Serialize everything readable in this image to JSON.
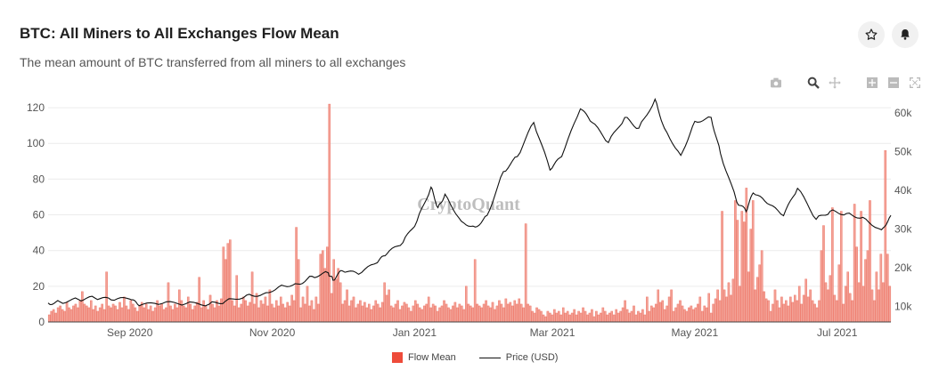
{
  "header": {
    "title": "BTC: All Miners to All Exchanges Flow Mean",
    "subtitle": "The mean amount of BTC transferred from all miners to all exchanges",
    "star_icon": "star-icon",
    "bell_icon": "bell-icon"
  },
  "modebar": {
    "icons": [
      "camera-icon",
      "zoom-icon",
      "pan-icon",
      "zoom-in-icon",
      "zoom-out-icon",
      "autoscale-icon"
    ]
  },
  "watermark": "CryptoQuant",
  "legend": {
    "flow_label": "Flow Mean",
    "price_label": "Price (USD)"
  },
  "colors": {
    "bar_fill": "#f2a196",
    "bar_stroke": "#ee6a5a",
    "price_line": "#111111",
    "legend_bar": "#ee4b3a"
  },
  "chart_data": {
    "type": "bar",
    "title": "BTC: All Miners to All Exchanges Flow Mean",
    "x_range": [
      "2020-07-28",
      "2021-07-24"
    ],
    "x_ticks": [
      {
        "date": "2020-09-01",
        "label": "Sep 2020"
      },
      {
        "date": "2020-11-01",
        "label": "Nov 2020"
      },
      {
        "date": "2021-01-01",
        "label": "Jan 2021"
      },
      {
        "date": "2021-03-01",
        "label": "Mar 2021"
      },
      {
        "date": "2021-05-01",
        "label": "May 2021"
      },
      {
        "date": "2021-07-01",
        "label": "Jul 2021"
      }
    ],
    "y_left": {
      "range": [
        0,
        128
      ],
      "ticks": [
        0,
        20,
        40,
        60,
        80,
        100,
        120
      ]
    },
    "y_right": {
      "range": [
        6000,
        65000
      ],
      "ticks": [
        10000,
        20000,
        30000,
        40000,
        50000,
        60000
      ],
      "tick_labels": [
        "10k",
        "20k",
        "30k",
        "40k",
        "50k",
        "60k"
      ]
    },
    "grid": true,
    "legend_position": "bottom-center",
    "series": [
      {
        "name": "Flow Mean",
        "kind": "bar",
        "values": [
          4,
          6,
          7,
          5,
          8,
          9,
          7,
          6,
          11,
          8,
          7,
          9,
          10,
          8,
          12,
          17,
          10,
          9,
          8,
          12,
          7,
          9,
          6,
          8,
          10,
          7,
          28,
          9,
          8,
          10,
          9,
          7,
          11,
          8,
          14,
          9,
          7,
          12,
          10,
          8,
          6,
          9,
          11,
          8,
          10,
          7,
          9,
          6,
          8,
          12,
          9,
          10,
          7,
          8,
          22,
          9,
          7,
          10,
          8,
          18,
          12,
          9,
          8,
          14,
          10,
          7,
          9,
          11,
          25,
          8,
          12,
          9,
          7,
          15,
          10,
          8,
          12,
          9,
          13,
          42,
          35,
          44,
          46,
          12,
          9,
          26,
          8,
          10,
          14,
          12,
          9,
          11,
          28,
          10,
          16,
          8,
          12,
          10,
          14,
          9,
          18,
          10,
          8,
          12,
          9,
          14,
          10,
          8,
          11,
          9,
          15,
          12,
          53,
          35,
          8,
          14,
          10,
          20,
          9,
          12,
          7,
          14,
          10,
          38,
          40,
          30,
          42,
          122,
          16,
          35,
          24,
          30,
          22,
          10,
          12,
          18,
          9,
          12,
          14,
          8,
          10,
          12,
          9,
          11,
          8,
          10,
          7,
          9,
          12,
          10,
          8,
          11,
          22,
          15,
          18,
          9,
          8,
          10,
          12,
          7,
          9,
          11,
          10,
          8,
          6,
          9,
          12,
          10,
          8,
          7,
          9,
          10,
          14,
          8,
          10,
          9,
          6,
          8,
          9,
          12,
          10,
          8,
          7,
          9,
          11,
          8,
          10,
          9,
          7,
          20,
          10,
          9,
          8,
          35,
          10,
          9,
          8,
          10,
          12,
          9,
          8,
          11,
          7,
          9,
          12,
          10,
          8,
          13,
          10,
          11,
          9,
          12,
          10,
          13,
          10,
          8,
          55,
          10,
          9,
          6,
          5,
          8,
          7,
          6,
          4,
          3,
          6,
          5,
          4,
          7,
          5,
          6,
          4,
          8,
          5,
          6,
          4,
          5,
          7,
          4,
          6,
          5,
          8,
          6,
          4,
          5,
          7,
          3,
          6,
          4,
          5,
          8,
          6,
          4,
          5,
          6,
          4,
          7,
          5,
          6,
          8,
          12,
          7,
          5,
          6,
          9,
          4,
          6,
          5,
          7,
          4,
          14,
          6,
          9,
          8,
          10,
          18,
          11,
          12,
          7,
          9,
          14,
          18,
          6,
          8,
          10,
          12,
          9,
          7,
          6,
          8,
          9,
          7,
          8,
          10,
          14,
          6,
          9,
          8,
          16,
          5,
          10,
          13,
          18,
          12,
          62,
          18,
          14,
          22,
          15,
          24,
          68,
          57,
          20,
          62,
          56,
          75,
          28,
          52,
          68,
          18,
          25,
          32,
          40,
          17,
          13,
          12,
          6,
          10,
          18,
          12,
          8,
          14,
          10,
          12,
          9,
          14,
          11,
          15,
          12,
          20,
          10,
          15,
          24,
          14,
          18,
          12,
          10,
          8,
          12,
          40,
          54,
          22,
          18,
          26,
          64,
          15,
          12,
          32,
          62,
          10,
          20,
          28,
          16,
          12,
          66,
          42,
          22,
          62,
          20,
          35,
          40,
          68,
          18,
          12,
          28,
          18,
          38,
          22,
          96,
          38,
          20
        ]
      },
      {
        "name": "Price (USD)",
        "kind": "line",
        "axis": "right",
        "points": [
          [
            "2020-07-28",
            10900
          ],
          [
            "2020-08-02",
            11200
          ],
          [
            "2020-08-10",
            11800
          ],
          [
            "2020-08-17",
            12200
          ],
          [
            "2020-08-24",
            11700
          ],
          [
            "2020-09-01",
            11900
          ],
          [
            "2020-09-05",
            10200
          ],
          [
            "2020-09-15",
            10800
          ],
          [
            "2020-09-25",
            10700
          ],
          [
            "2020-10-05",
            10600
          ],
          [
            "2020-10-12",
            11400
          ],
          [
            "2020-10-21",
            12900
          ],
          [
            "2020-10-28",
            13200
          ],
          [
            "2020-11-05",
            15500
          ],
          [
            "2020-11-12",
            15800
          ],
          [
            "2020-11-18",
            17800
          ],
          [
            "2020-11-25",
            18700
          ],
          [
            "2020-11-27",
            16800
          ],
          [
            "2020-12-01",
            19200
          ],
          [
            "2020-12-08",
            18300
          ],
          [
            "2020-12-16",
            21300
          ],
          [
            "2020-12-20",
            23500
          ],
          [
            "2020-12-27",
            26500
          ],
          [
            "2021-01-02",
            32000
          ],
          [
            "2021-01-08",
            40800
          ],
          [
            "2021-01-11",
            35500
          ],
          [
            "2021-01-14",
            39000
          ],
          [
            "2021-01-21",
            32000
          ],
          [
            "2021-01-27",
            30500
          ],
          [
            "2021-02-01",
            33500
          ],
          [
            "2021-02-08",
            44800
          ],
          [
            "2021-02-14",
            48700
          ],
          [
            "2021-02-21",
            57500
          ],
          [
            "2021-02-28",
            45200
          ],
          [
            "2021-03-05",
            48700
          ],
          [
            "2021-03-13",
            61000
          ],
          [
            "2021-03-18",
            57500
          ],
          [
            "2021-03-25",
            52300
          ],
          [
            "2021-04-01",
            58800
          ],
          [
            "2021-04-07",
            56000
          ],
          [
            "2021-04-14",
            63500
          ],
          [
            "2021-04-18",
            56000
          ],
          [
            "2021-04-25",
            49000
          ],
          [
            "2021-05-01",
            57800
          ],
          [
            "2021-05-08",
            58800
          ],
          [
            "2021-05-12",
            49500
          ],
          [
            "2021-05-19",
            37000
          ],
          [
            "2021-05-23",
            34500
          ],
          [
            "2021-05-26",
            39300
          ],
          [
            "2021-06-01",
            36600
          ],
          [
            "2021-06-08",
            33400
          ],
          [
            "2021-06-14",
            40500
          ],
          [
            "2021-06-22",
            32500
          ],
          [
            "2021-06-28",
            34600
          ],
          [
            "2021-07-05",
            34000
          ],
          [
            "2021-07-12",
            33000
          ],
          [
            "2021-07-20",
            29800
          ],
          [
            "2021-07-24",
            33500
          ]
        ]
      }
    ]
  }
}
